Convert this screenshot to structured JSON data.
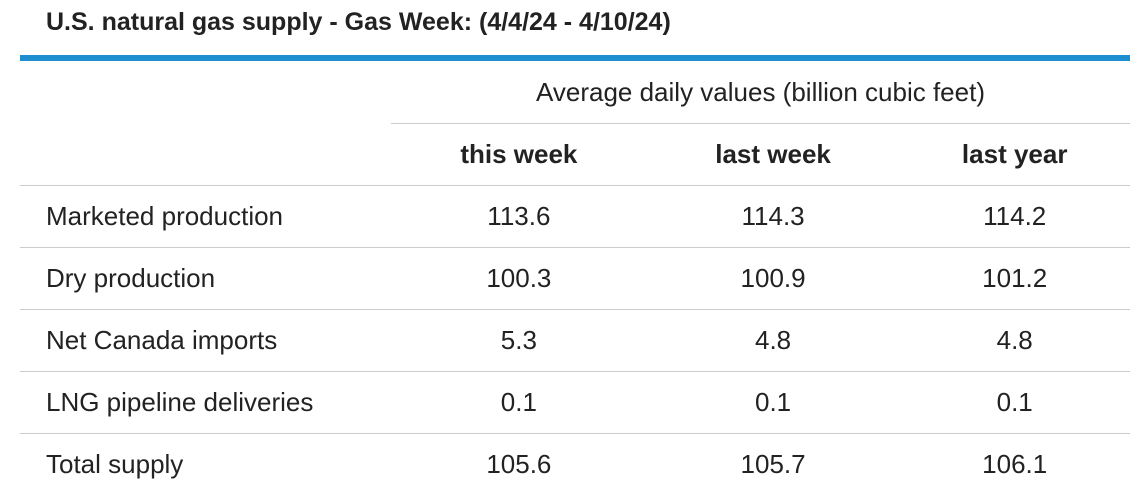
{
  "header": {
    "title": "U.S. natural gas supply - Gas Week: (4/4/24 - 4/10/24)"
  },
  "table": {
    "group_header": "Average daily values (billion cubic feet)",
    "columns": [
      "this week",
      "last week",
      "last year"
    ],
    "rows": [
      [
        "Marketed production",
        "113.6",
        "114.3",
        "114.2"
      ],
      [
        "Dry production",
        "100.3",
        "100.9",
        "101.2"
      ],
      [
        "Net Canada imports",
        "5.3",
        "4.8",
        "4.8"
      ],
      [
        "LNG pipeline deliveries",
        "0.1",
        "0.1",
        "0.1"
      ],
      [
        "Total supply",
        "105.6",
        "105.7",
        "106.1"
      ]
    ]
  }
}
